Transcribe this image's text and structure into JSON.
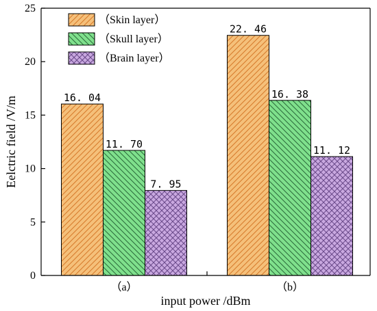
{
  "chart_data": {
    "type": "bar",
    "categories": [
      "（a）",
      "（b）"
    ],
    "series": [
      {
        "name": "（Skin layer）",
        "values": [
          16.04,
          22.46
        ],
        "labels": [
          "16. 04",
          "22. 46"
        ],
        "color": "#f5c07a",
        "hatch": "#d67a2a",
        "pattern": "diag-right"
      },
      {
        "name": "（Skull layer）",
        "values": [
          11.7,
          16.38
        ],
        "labels": [
          "11. 70",
          "16. 38"
        ],
        "color": "#7fe08c",
        "hatch": "#2a6a3a",
        "pattern": "diag-left"
      },
      {
        "name": "（Brain layer）",
        "values": [
          7.95,
          11.12
        ],
        "labels": [
          "7. 95",
          "11. 12"
        ],
        "color": "#c9a8e0",
        "hatch": "#6a4a8a",
        "pattern": "cross"
      }
    ],
    "xlabel": "input power /dBm",
    "ylabel": "Eelctric field /V/m",
    "ylim": [
      0,
      25
    ],
    "yticks": [
      "0",
      "5",
      "10",
      "15",
      "20",
      "25"
    ],
    "legend_position": "top-left",
    "grid": false
  }
}
